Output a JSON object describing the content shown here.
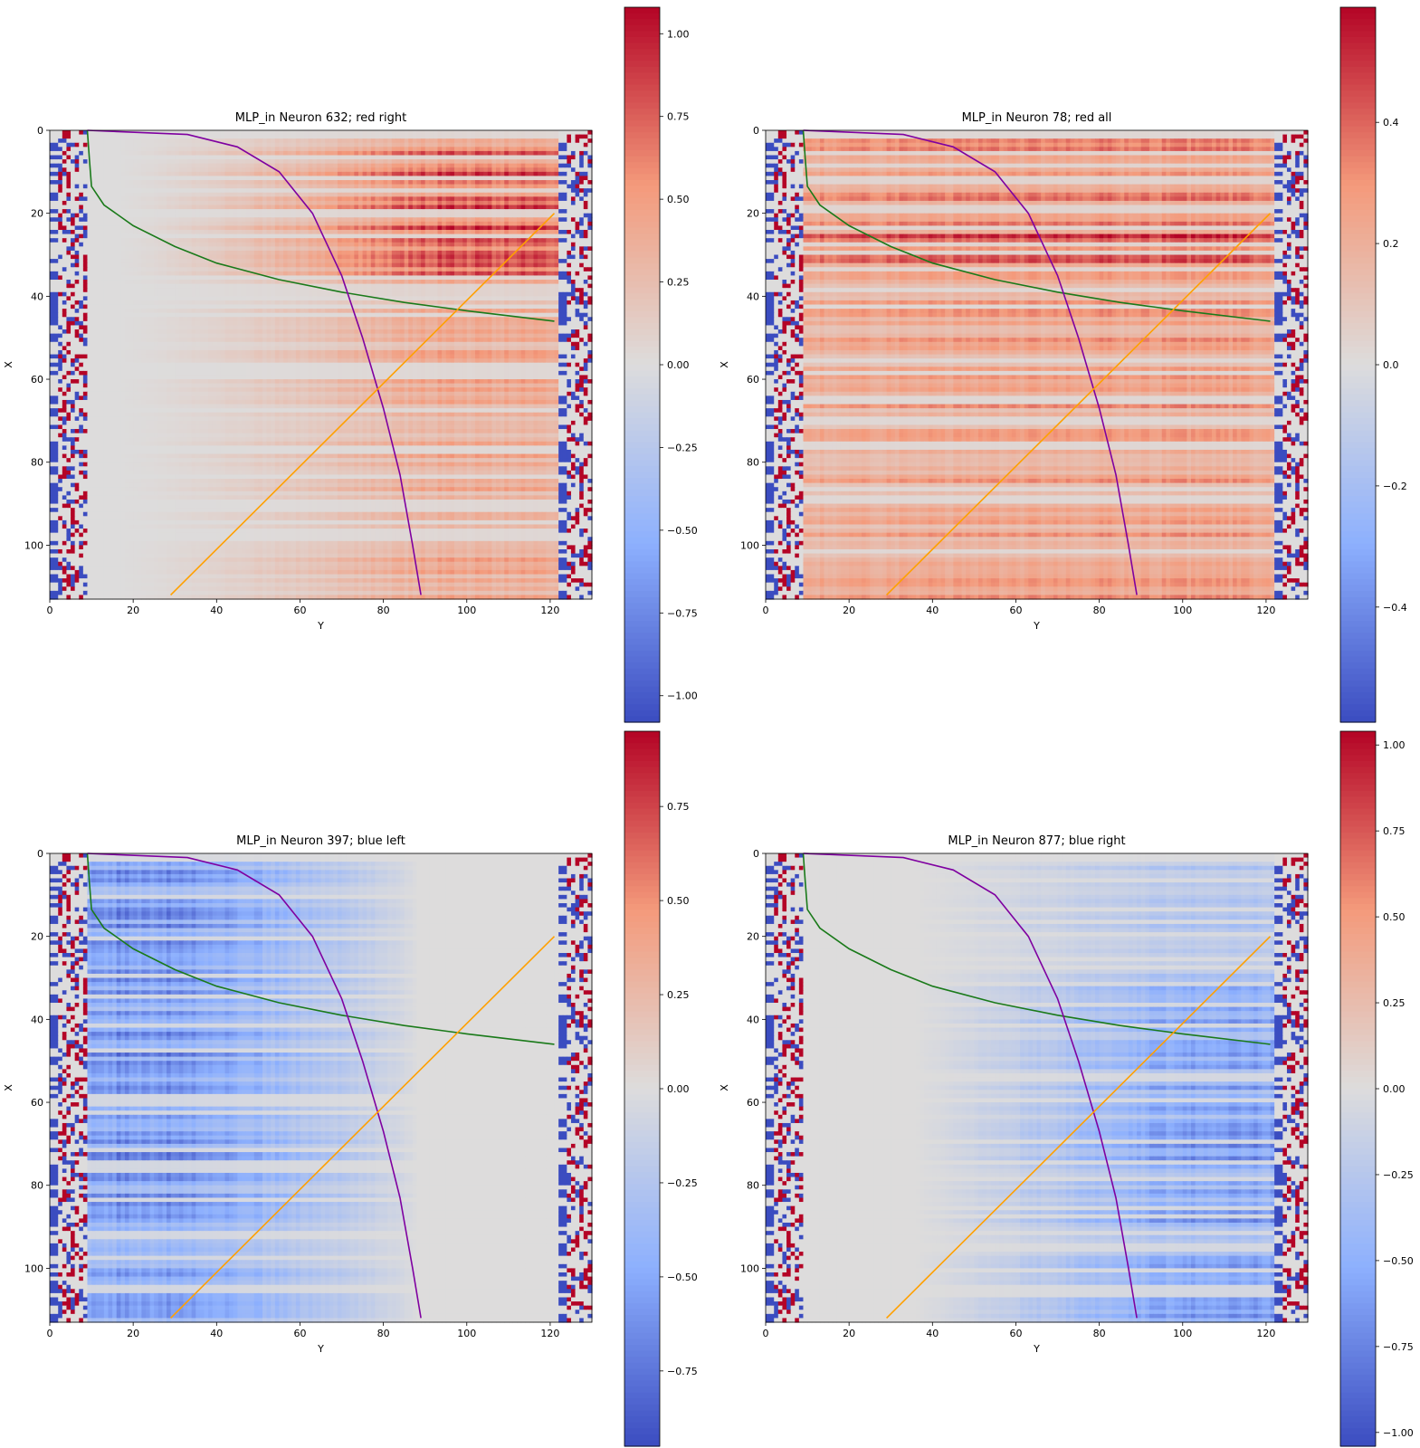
{
  "chart_data": [
    {
      "type": "heatmap",
      "title": "MLP_in Neuron 632; red right",
      "xlabel": "Y",
      "ylabel": "X",
      "xlim": [
        0,
        130
      ],
      "ylim": [
        113,
        0
      ],
      "xticks": [
        0,
        20,
        40,
        60,
        80,
        100,
        120
      ],
      "yticks": [
        0,
        20,
        40,
        60,
        80,
        100
      ],
      "colorbar": {
        "min": -1.08,
        "max": 1.08,
        "ticks": [
          "1.00",
          "0.75",
          "0.50",
          "0.25",
          "0.00",
          "−0.25",
          "−0.50",
          "−0.75",
          "−1.00"
        ],
        "tick_values": [
          1.0,
          0.75,
          0.5,
          0.25,
          0.0,
          -0.25,
          -0.5,
          -0.75,
          -1.0
        ]
      },
      "pattern": "red right",
      "colormap": "coolwarm",
      "grid": false
    },
    {
      "type": "heatmap",
      "title": "MLP_in Neuron 78; red all",
      "xlabel": "Y",
      "ylabel": "X",
      "xlim": [
        0,
        130
      ],
      "ylim": [
        113,
        0
      ],
      "xticks": [
        0,
        20,
        40,
        60,
        80,
        100,
        120
      ],
      "yticks": [
        0,
        20,
        40,
        60,
        80,
        100
      ],
      "colorbar": {
        "min": -0.59,
        "max": 0.59,
        "ticks": [
          "0.4",
          "0.2",
          "0.0",
          "−0.2",
          "−0.4"
        ],
        "tick_values": [
          0.4,
          0.2,
          0.0,
          -0.2,
          -0.4
        ]
      },
      "pattern": "red all",
      "colormap": "coolwarm",
      "grid": false
    },
    {
      "type": "heatmap",
      "title": "MLP_in Neuron 397; blue left",
      "xlabel": "Y",
      "ylabel": "X",
      "xlim": [
        0,
        130
      ],
      "ylim": [
        113,
        0
      ],
      "xticks": [
        0,
        20,
        40,
        60,
        80,
        100,
        120
      ],
      "yticks": [
        0,
        20,
        40,
        60,
        80,
        100
      ],
      "colorbar": {
        "min": -0.95,
        "max": 0.95,
        "ticks": [
          "0.75",
          "0.50",
          "0.25",
          "0.00",
          "−0.25",
          "−0.50",
          "−0.75"
        ],
        "tick_values": [
          0.75,
          0.5,
          0.25,
          0.0,
          -0.25,
          -0.5,
          -0.75
        ]
      },
      "pattern": "blue left",
      "colormap": "coolwarm",
      "grid": false
    },
    {
      "type": "heatmap",
      "title": "MLP_in Neuron 877; blue right",
      "xlabel": "Y",
      "ylabel": "X",
      "xlim": [
        0,
        130
      ],
      "ylim": [
        113,
        0
      ],
      "xticks": [
        0,
        20,
        40,
        60,
        80,
        100,
        120
      ],
      "yticks": [
        0,
        20,
        40,
        60,
        80,
        100
      ],
      "colorbar": {
        "min": -1.04,
        "max": 1.04,
        "ticks": [
          "1.00",
          "0.75",
          "0.50",
          "0.25",
          "0.00",
          "−0.25",
          "−0.50",
          "−0.75",
          "−1.00"
        ],
        "tick_values": [
          1.0,
          0.75,
          0.5,
          0.25,
          0.0,
          -0.25,
          -0.5,
          -0.75,
          -1.0
        ]
      },
      "pattern": "blue right",
      "colormap": "coolwarm",
      "grid": false
    }
  ],
  "overlay_curves": {
    "green": {
      "color": "#1a7a1a",
      "points": [
        [
          9,
          0
        ],
        [
          9.5,
          7
        ],
        [
          10,
          13.5
        ],
        [
          13,
          18
        ],
        [
          20,
          23
        ],
        [
          30,
          28
        ],
        [
          40,
          32
        ],
        [
          55,
          36
        ],
        [
          70,
          39
        ],
        [
          85,
          41.5
        ],
        [
          100,
          43.5
        ],
        [
          121,
          46
        ]
      ]
    },
    "purple": {
      "color": "#7f00a0",
      "points": [
        [
          9,
          0
        ],
        [
          33,
          1
        ],
        [
          45,
          4
        ],
        [
          55,
          10
        ],
        [
          63,
          20
        ],
        [
          70,
          35
        ],
        [
          75,
          50
        ],
        [
          80,
          67
        ],
        [
          84,
          83
        ],
        [
          87,
          100
        ],
        [
          89,
          112
        ]
      ]
    },
    "orange": {
      "color": "#ffa000",
      "points": [
        [
          29,
          112
        ],
        [
          121,
          20
        ]
      ]
    }
  }
}
